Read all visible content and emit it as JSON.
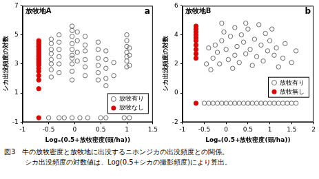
{
  "chart_data": [
    {
      "type": "scatter",
      "title": "放牧地A",
      "annotation": "a",
      "x_label": "Logₑ(0.5+放牧密度(頭/ha))",
      "y_label": "シカ出没頻度の対数",
      "xlim": [
        -1,
        1.5
      ],
      "xticks": [
        -1,
        -0.5,
        0,
        0.5,
        1,
        1.5
      ],
      "ylim": [
        -1,
        7
      ],
      "yticks": [
        -1,
        1,
        3,
        5,
        7
      ],
      "grid": false,
      "legend": "lower right",
      "series": [
        {
          "name": "放牧有り",
          "color": "#666666",
          "marker": "open_circle",
          "x": [
            -0.45,
            -0.45,
            -0.45,
            -0.45,
            -0.45,
            -0.45,
            -0.45,
            -0.45,
            -0.3,
            -0.3,
            -0.3,
            -0.3,
            -0.3,
            -0.3,
            -0.05,
            -0.05,
            -0.05,
            -0.05,
            -0.05,
            -0.05,
            -0.05,
            -0.05,
            -0.05,
            -0.05,
            0.05,
            0.05,
            0.05,
            0.05,
            0.2,
            0.2,
            0.2,
            0.2,
            0.2,
            0.2,
            0.45,
            0.45,
            0.45,
            0.45,
            0.45,
            0.45,
            0.6,
            0.6,
            0.6,
            0.6,
            0.6,
            0.75,
            0.75,
            1.0,
            1.0,
            1.0,
            1.0,
            1.0,
            1.0,
            1.0,
            1.05,
            1.05,
            1.05,
            -0.5,
            -0.3,
            -0.2,
            -0.05,
            0.1,
            0.25,
            0.5,
            0.6,
            0.95,
            1.05
          ],
          "values": [
            2.1,
            2.6,
            3.0,
            3.3,
            3.7,
            4.0,
            4.4,
            4.7,
            2.4,
            3.0,
            3.5,
            4.0,
            4.5,
            5.0,
            1.9,
            2.5,
            3.0,
            3.4,
            3.6,
            4.0,
            4.4,
            4.9,
            5.3,
            5.6,
            3.2,
            3.8,
            4.6,
            5.2,
            2.2,
            2.8,
            3.3,
            3.9,
            4.3,
            4.9,
            1.9,
            2.4,
            2.9,
            3.4,
            4.0,
            4.5,
            1.5,
            2.0,
            2.7,
            3.3,
            3.9,
            2.2,
            3.1,
            2.8,
            3.2,
            3.5,
            3.8,
            4.2,
            4.6,
            5.0,
            2.9,
            3.6,
            4.1,
            -0.7,
            -0.7,
            -0.7,
            -0.7,
            -0.7,
            -0.7,
            -0.7,
            -0.7,
            -0.7,
            -0.7
          ]
        },
        {
          "name": "放牧なし",
          "color": "#e00000",
          "marker": "circle",
          "x": [
            -0.69,
            -0.69,
            -0.69,
            -0.69,
            -0.69,
            -0.69,
            -0.69,
            -0.69,
            -0.69,
            -0.69,
            -0.69,
            -0.69,
            -0.69,
            -0.69,
            -0.69,
            -0.69,
            -0.69,
            -0.69,
            -0.69,
            -0.69,
            -0.69,
            -0.69,
            -0.69,
            -0.69
          ],
          "values": [
            1.3,
            1.9,
            2.2,
            2.5,
            2.7,
            2.9,
            3.0,
            3.1,
            3.2,
            3.3,
            3.4,
            3.5,
            3.6,
            3.7,
            3.8,
            3.9,
            4.0,
            4.1,
            4.2,
            4.3,
            4.4,
            4.5,
            4.6,
            -0.7
          ]
        }
      ]
    },
    {
      "type": "scatter",
      "title": "放牧地B",
      "annotation": "b",
      "x_label": "Logₑ(0.5+放牧密度(頭/ha))",
      "y_label": "シカ出没頻度の対数",
      "xlim": [
        -1,
        2
      ],
      "xticks": [
        -1,
        -0.5,
        0,
        0.5,
        1,
        1.5,
        2
      ],
      "ylim": [
        -2,
        6
      ],
      "yticks": [
        -2,
        0,
        2,
        4,
        6
      ],
      "grid": false,
      "legend": "right",
      "series": [
        {
          "name": "放牧有り",
          "color": "#666666",
          "marker": "open_circle",
          "x": [
            -0.45,
            -0.4,
            -0.35,
            -0.3,
            -0.25,
            -0.2,
            -0.15,
            -0.1,
            -0.05,
            0,
            0.05,
            0.1,
            0.15,
            0.2,
            0.2,
            0.25,
            0.3,
            0.35,
            0.4,
            0.45,
            0.5,
            0.55,
            0.6,
            0.65,
            0.7,
            0.75,
            0.8,
            0.85,
            0.9,
            0.95,
            1.0,
            1.05,
            1.1,
            1.15,
            1.2,
            1.3,
            1.35,
            1.5,
            1.6,
            -0.1,
            0.45,
            -0.5,
            -0.4,
            -0.3,
            -0.2,
            -0.1,
            0,
            0.1,
            0.2,
            0.3,
            0.4,
            0.5,
            0.6,
            0.7,
            0.8,
            0.9,
            1.0,
            1.1,
            1.2,
            1.3,
            1.4,
            1.5,
            1.6
          ],
          "values": [
            2.0,
            3.1,
            1.6,
            2.4,
            3.3,
            2.8,
            2.0,
            3.6,
            4.2,
            3.0,
            2.3,
            3.9,
            1.7,
            2.6,
            4.5,
            3.2,
            2.1,
            4.0,
            3.5,
            2.7,
            4.4,
            3.0,
            1.9,
            3.7,
            2.5,
            4.7,
            3.3,
            2.2,
            4.1,
            2.9,
            3.6,
            4.4,
            2.6,
            3.1,
            1.8,
            2.4,
            3.4,
            2.1,
            2.9,
            4.8,
            4.8,
            -0.7,
            -0.7,
            -0.7,
            -0.7,
            -0.7,
            -0.7,
            -0.7,
            -0.7,
            -0.7,
            -0.7,
            -0.7,
            -0.7,
            -0.7,
            -0.7,
            -0.7,
            -0.7,
            -0.7,
            -0.7,
            -0.7,
            -0.7,
            -0.7,
            -0.7
          ]
        },
        {
          "name": "放牧無し",
          "color": "#e00000",
          "marker": "circle",
          "x": [
            -0.69,
            -0.69,
            -0.69,
            -0.69,
            -0.69,
            -0.69,
            -0.69,
            -0.69,
            -0.69,
            -0.69,
            -0.69
          ],
          "values": [
            2.4,
            2.7,
            3.0,
            3.3,
            3.6,
            3.8,
            4.0,
            4.2,
            4.4,
            4.6,
            -0.7
          ]
        }
      ]
    }
  ],
  "caption": [
    "図3　牛の放牧密度と放牧地に出没するニホンジカの出没頻度との関係。",
    "シカ出没頻度の対数値は、Log(0.5+シカの撮影頻度)により算出。"
  ]
}
